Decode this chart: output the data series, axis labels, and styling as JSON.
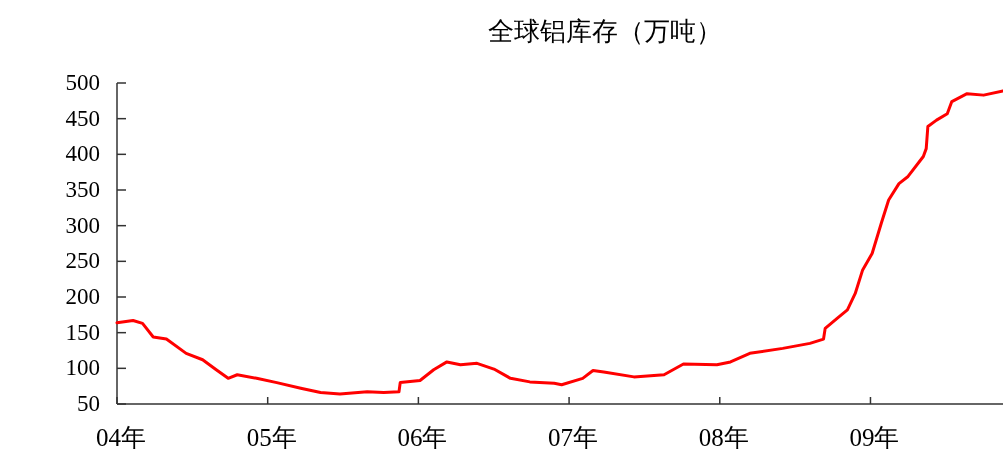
{
  "chart_data": {
    "type": "line",
    "title": "全球铝库存（万吨）",
    "color": "#ff0000",
    "line_style": "solid",
    "x": [
      "2004-01-01",
      "2004-02-09",
      "2004-03-03",
      "2004-03-29",
      "2004-04-30",
      "2004-06-17",
      "2004-07-27",
      "2004-08-29",
      "2004-09-27",
      "2004-10-19",
      "2004-12-05",
      "2005-01-23",
      "2005-03-22",
      "2005-05-09",
      "2005-06-25",
      "2005-08-30",
      "2005-10-09",
      "2005-11-15",
      "2005-11-18",
      "2006-01-05",
      "2006-02-07",
      "2006-03-11",
      "2006-04-13",
      "2006-05-23",
      "2006-07-03",
      "2006-08-12",
      "2006-09-28",
      "2006-11-26",
      "2006-12-14",
      "2007-02-03",
      "2007-02-28",
      "2007-03-26",
      "2007-06-07",
      "2007-08-19",
      "2007-10-05",
      "2007-12-25",
      "2008-01-27",
      "2008-03-14",
      "2008-06-02",
      "2008-08-07",
      "2008-09-09",
      "2008-09-13",
      "2008-10-12",
      "2008-11-06",
      "2008-11-25",
      "2008-12-13",
      "2009-01-05",
      "2009-01-27",
      "2009-02-14",
      "2009-03-11",
      "2009-04-02",
      "2009-05-09",
      "2009-05-16",
      "2009-05-20",
      "2009-06-10",
      "2009-07-06",
      "2009-07-17",
      "2009-08-23",
      "2009-10-02",
      "2009-11-18"
    ],
    "values": [
      164,
      167,
      163,
      144,
      141,
      121,
      112,
      98,
      86,
      91,
      86,
      80,
      72,
      66,
      64,
      67,
      66,
      67,
      80,
      83,
      98,
      109,
      105,
      107,
      99,
      86,
      81,
      79,
      77,
      86,
      97,
      95,
      88,
      91,
      106,
      105,
      109,
      121,
      128,
      135,
      141,
      156,
      170,
      182,
      205,
      238,
      261,
      303,
      336,
      359,
      369,
      397,
      408,
      439,
      448,
      457,
      474,
      485,
      483,
      489
    ],
    "xlim": [
      "2004-01-01",
      "2009-11-18"
    ],
    "ylim": [
      50,
      500
    ],
    "xticks": [
      {
        "value": "2004",
        "label": "04年"
      },
      {
        "value": "2005",
        "label": "05年"
      },
      {
        "value": "2006",
        "label": "06年"
      },
      {
        "value": "2007",
        "label": "07年"
      },
      {
        "value": "2008",
        "label": "08年"
      },
      {
        "value": "2009",
        "label": "09年"
      }
    ],
    "yticks": [
      50,
      100,
      150,
      200,
      250,
      300,
      350,
      400,
      450,
      500
    ]
  }
}
